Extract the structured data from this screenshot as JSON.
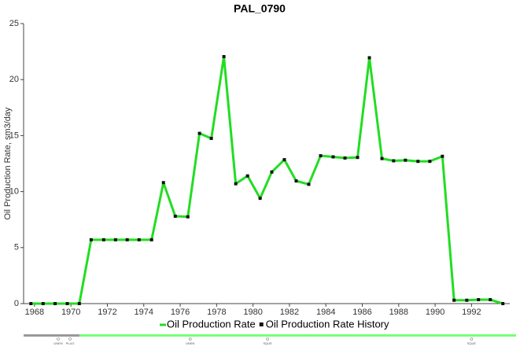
{
  "chart_data": {
    "type": "line",
    "title": "PAL_0790",
    "y_label": "Oil Production Rate, sm3/day",
    "x": [
      1967.8,
      1968.47,
      1969.13,
      1969.8,
      1970.46,
      1971.11,
      1971.8,
      1972.45,
      1973.09,
      1973.74,
      1974.43,
      1975.08,
      1975.73,
      1976.42,
      1977.06,
      1977.71,
      1978.4,
      1979.05,
      1979.7,
      1980.39,
      1981.03,
      1981.72,
      1982.37,
      1983.06,
      1983.71,
      1984.4,
      1985.05,
      1985.74,
      1986.39,
      1987.08,
      1987.72,
      1988.37,
      1989.06,
      1989.71,
      1990.4,
      1991.04,
      1991.74,
      1992.38,
      1993.03,
      1993.72
    ],
    "series": [
      {
        "name": "Oil Production Rate",
        "color": "#22dd22",
        "values": [
          0,
          0,
          0,
          0,
          0,
          5.7,
          5.7,
          5.7,
          5.7,
          5.7,
          5.7,
          10.8,
          7.8,
          7.75,
          15.2,
          14.75,
          22.05,
          10.7,
          11.4,
          9.4,
          11.75,
          12.85,
          10.95,
          10.65,
          13.2,
          13.1,
          13.0,
          13.05,
          21.95,
          12.95,
          12.75,
          12.8,
          12.7,
          12.7,
          13.15,
          0.3,
          0.3,
          0.35,
          0.35,
          0
        ]
      },
      {
        "name": "Oil Production Rate History",
        "color": "#111111",
        "values": [
          0,
          0,
          0,
          0,
          0,
          5.7,
          5.7,
          5.7,
          5.7,
          5.7,
          5.7,
          10.8,
          7.8,
          7.75,
          15.2,
          14.75,
          22.05,
          10.7,
          11.4,
          9.4,
          11.75,
          12.85,
          10.95,
          10.65,
          13.2,
          13.1,
          13.0,
          13.05,
          21.95,
          12.95,
          12.75,
          12.8,
          12.7,
          12.7,
          13.15,
          0.3,
          0.3,
          0.35,
          0.35,
          0
        ]
      }
    ],
    "xlim": [
      1967.4,
      1994.1
    ],
    "xticks": [
      1968,
      1970,
      1972,
      1974,
      1976,
      1978,
      1980,
      1982,
      1984,
      1986,
      1988,
      1990,
      1992
    ],
    "ylim": [
      0,
      25
    ],
    "yticks": [
      0,
      5,
      10,
      15,
      20,
      25
    ],
    "events": [
      {
        "x": 1969.3,
        "label": "UNEN"
      },
      {
        "x": 1969.95,
        "label": "PLUG"
      },
      {
        "x": 1976.55,
        "label": "UNEN"
      },
      {
        "x": 1980.8,
        "label": "SQUE"
      },
      {
        "x": 1992.0,
        "label": "SQUE"
      }
    ],
    "active_from": 1970.46
  }
}
